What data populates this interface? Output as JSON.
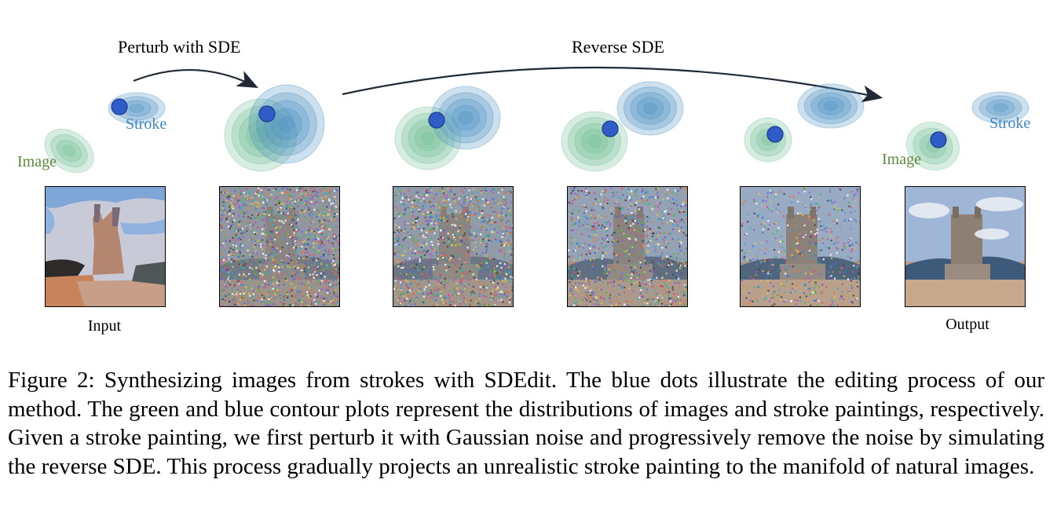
{
  "figure": {
    "arrow_labels": {
      "perturb": "Perturb with SDE",
      "reverse": "Reverse SDE"
    },
    "distribution_labels": {
      "left_image": "Image",
      "left_stroke": "Stroke",
      "right_image": "Image",
      "right_stroke": "Stroke"
    },
    "panel_labels": {
      "input": "Input",
      "output": "Output"
    },
    "colors": {
      "image_distribution": "#6fbf95",
      "stroke_distribution": "#4a90c2",
      "dot": "#2f5cc7",
      "image_label": "#5a8a3a",
      "stroke_label": "#3f88c5",
      "arrow": "#1f2a36"
    },
    "panels": [
      {
        "name": "input",
        "noise": 0
      },
      {
        "name": "step-1",
        "noise": 1.0
      },
      {
        "name": "step-2",
        "noise": 0.85
      },
      {
        "name": "step-3",
        "noise": 0.65
      },
      {
        "name": "step-4",
        "noise": 0.35
      },
      {
        "name": "output",
        "noise": 0
      }
    ]
  },
  "caption": {
    "prefix": "Figure 2:",
    "text": "Synthesizing images from strokes with SDEdit. The blue dots illustrate the editing process of our method. The green and blue contour plots represent the distributions of images and stroke paintings, respectively. Given a stroke painting, we first perturb it with Gaussian noise and progressively remove the noise by simulating the reverse SDE. This process gradually projects an unrealistic stroke painting to the manifold of natural images."
  }
}
